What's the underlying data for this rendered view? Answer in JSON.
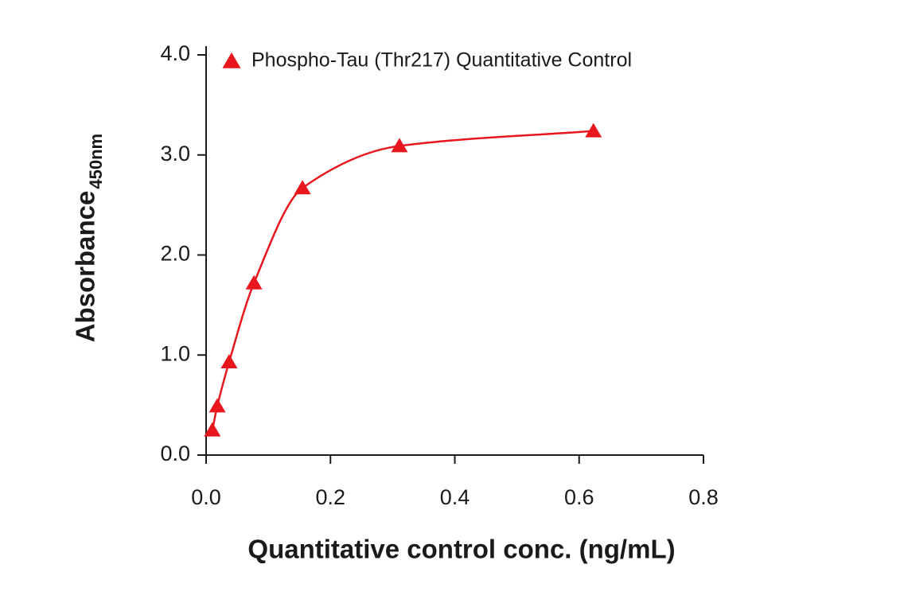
{
  "chart_data": {
    "type": "scatter",
    "x_label": "Quantitative control conc. (ng/mL)",
    "y_label": "Absorbance",
    "y_label_subscript": "450nm",
    "legend_position": "upper left",
    "fit_curve": true,
    "series": [
      {
        "name": "Phospho-Tau (Thr217) Quantitative Control",
        "color": "#e8161d",
        "x": [
          0.01,
          0.018,
          0.037,
          0.077,
          0.155,
          0.311,
          0.623
        ],
        "values": [
          0.25,
          0.49,
          0.93,
          1.72,
          2.67,
          3.09,
          3.24
        ]
      }
    ],
    "xlim": [
      0,
      0.8
    ],
    "xticks": [
      {
        "value": 0,
        "label": "0.0"
      },
      0.2,
      0.4,
      0.6,
      0.8
    ],
    "ylim": [
      0,
      4
    ],
    "yticks": [
      {
        "value": 0,
        "label": "0.0"
      },
      {
        "value": 1,
        "label": "1.0"
      },
      {
        "value": 2,
        "label": "2.0"
      },
      {
        "value": 3,
        "label": "3.0"
      },
      {
        "value": 4,
        "label": "4.0"
      }
    ]
  }
}
